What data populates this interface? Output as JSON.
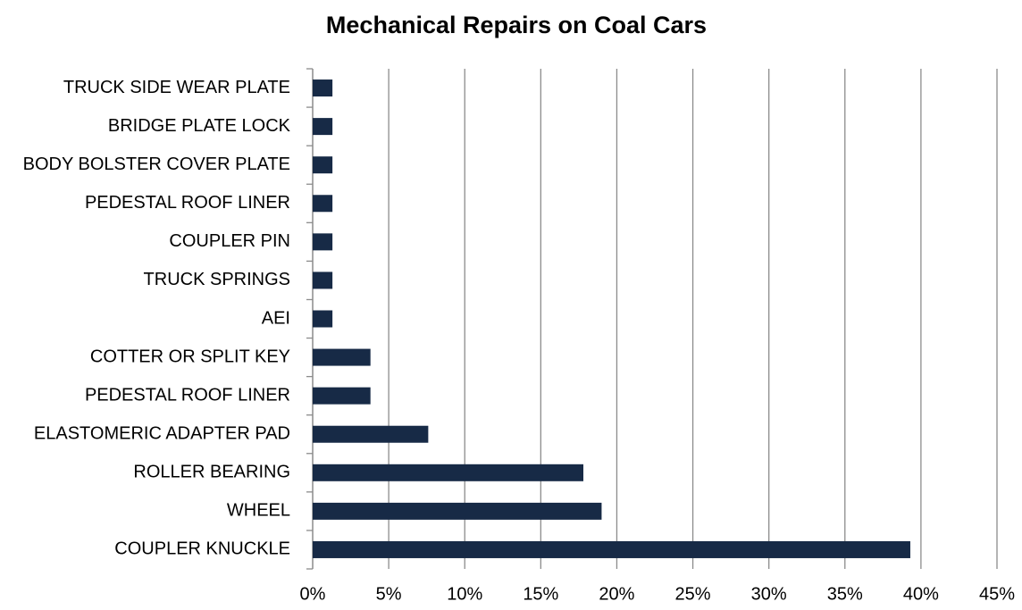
{
  "chart_data": {
    "type": "bar",
    "orientation": "horizontal",
    "title": "Mechanical Repairs on Coal Cars",
    "categories": [
      "TRUCK SIDE WEAR PLATE",
      "BRIDGE PLATE LOCK",
      "BODY BOLSTER COVER PLATE",
      "PEDESTAL ROOF LINER",
      "COUPLER PIN",
      "TRUCK SPRINGS",
      "AEI",
      "COTTER OR SPLIT KEY",
      "PEDESTAL ROOF LINER",
      "ELASTOMERIC ADAPTER PAD",
      "ROLLER BEARING",
      "WHEEL",
      "COUPLER KNUCKLE"
    ],
    "values": [
      1.3,
      1.3,
      1.3,
      1.3,
      1.3,
      1.3,
      1.3,
      3.8,
      3.8,
      7.6,
      17.8,
      19.0,
      39.3
    ],
    "color": "#172a46",
    "xlim": [
      0,
      45
    ],
    "xticks": [
      {
        "value": 0,
        "label": "0%"
      },
      {
        "value": 5,
        "label": "5%"
      },
      {
        "value": 10,
        "label": "10%"
      },
      {
        "value": 15,
        "label": "15%"
      },
      {
        "value": 20,
        "label": "20%"
      },
      {
        "value": 25,
        "label": "25%"
      },
      {
        "value": 30,
        "label": "30%"
      },
      {
        "value": 35,
        "label": "35%"
      },
      {
        "value": 40,
        "label": "40%"
      },
      {
        "value": 45,
        "label": "45%"
      }
    ],
    "grid": true
  }
}
